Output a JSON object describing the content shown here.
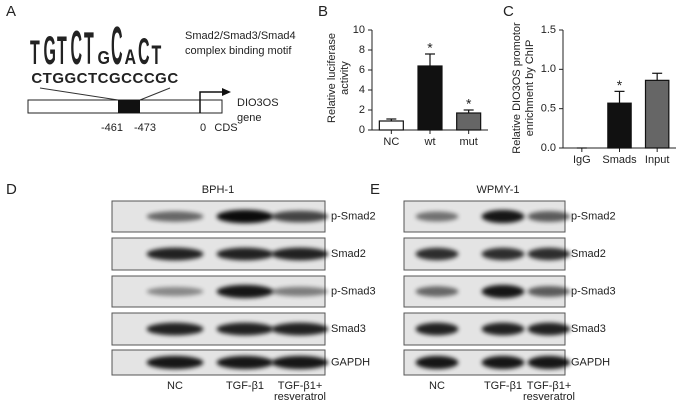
{
  "panels": [
    "A",
    "B",
    "C",
    "D",
    "E"
  ],
  "motif": {
    "logo": [
      "T",
      "G",
      "T",
      "C",
      "T",
      "G",
      "C",
      "A",
      "C",
      "T"
    ],
    "logo_colors": [
      "#d62728",
      "#f0a020",
      "#d62728",
      "#1f5fbf",
      "#d62728",
      "#f0a020",
      "#1f5fbf",
      "#2ca02c",
      "#1f5fbf",
      "#d62728"
    ],
    "label": [
      "Smad2/Smad3/Smad4",
      "complex binding motif"
    ],
    "sequence": "CTGGCTCGCCCGC",
    "positions": [
      "-461",
      "-473",
      "0",
      "CDS"
    ],
    "gene": [
      "DIO3OS",
      "gene"
    ]
  },
  "chart_data": [
    {
      "type": "bar",
      "ylabel": [
        "Relative luciferase",
        "activity"
      ],
      "categories": [
        "NC",
        "wt",
        "mut"
      ],
      "values": [
        0.9,
        6.4,
        1.7
      ],
      "errors": [
        0.2,
        1.2,
        0.3
      ],
      "colors": [
        "#ffffff",
        "#111111",
        "#666666"
      ],
      "ylim": [
        0,
        10
      ],
      "yticks": [
        0,
        2,
        4,
        6,
        8,
        10
      ],
      "annotations": [
        {
          "category": "wt",
          "text": "*"
        },
        {
          "category": "mut",
          "text": "*"
        }
      ]
    },
    {
      "type": "bar",
      "ylabel": [
        "Relative DIO3OS promotor",
        "enrichment by ChIP"
      ],
      "categories": [
        "IgG",
        "Smads",
        "Input"
      ],
      "values": [
        0,
        0.57,
        0.86
      ],
      "errors": [
        0,
        0.15,
        0.09
      ],
      "colors": [
        "#ffffff",
        "#111111",
        "#666666"
      ],
      "ylim": [
        0,
        1.5
      ],
      "yticks": [
        {
          "value": 0,
          "label": "0.0"
        },
        0.5,
        {
          "value": 1,
          "label": "1.0"
        },
        1.5
      ],
      "annotations": [
        {
          "category": "Smads",
          "text": "*"
        }
      ]
    }
  ],
  "blots": [
    {
      "title": "BPH-1",
      "rows": [
        "p-Smad2",
        "Smad2",
        "p-Smad3",
        "Smad3",
        "GAPDH"
      ],
      "lanes": [
        [
          "NC"
        ],
        [
          "TGF-β1"
        ],
        [
          "TGF-β1+",
          "resveratrol"
        ]
      ]
    },
    {
      "title": "WPMY-1",
      "rows": [
        "p-Smad2",
        "Smad2",
        "p-Smad3",
        "Smad3",
        "GAPDH"
      ],
      "lanes": [
        [
          "NC"
        ],
        [
          "TGF-β1"
        ],
        [
          "TGF-β1+",
          "resveratrol"
        ]
      ]
    }
  ]
}
